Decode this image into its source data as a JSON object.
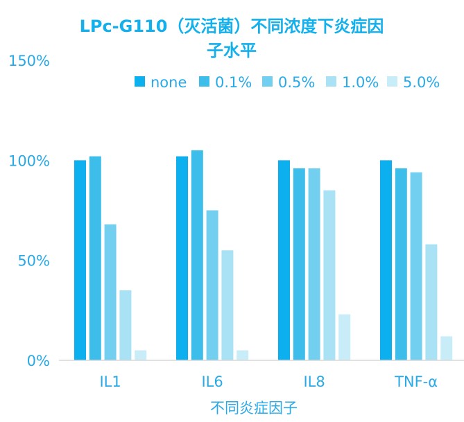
{
  "chart_data": {
    "type": "bar",
    "title": "LPc-G110（灭活菌）不同浓度下炎症因子水平",
    "title_lines": [
      "LPc-G110（灭活菌）不同浓度下炎症因子水平"
    ],
    "title_line1": "LPc-G110（灭活菌）不同浓度下炎症因",
    "title_line2": "子水平",
    "xlabel": "不同炎症因子",
    "ylabel": "",
    "categories": [
      "IL1",
      "IL6",
      "IL8",
      "TNF-α"
    ],
    "series": [
      {
        "name": "none",
        "values": [
          100,
          102,
          100,
          100
        ],
        "color": "#0db0ee"
      },
      {
        "name": "0.1%",
        "values": [
          102,
          105,
          96,
          96
        ],
        "color": "#3cbdea"
      },
      {
        "name": "0.5%",
        "values": [
          68,
          75,
          96,
          94
        ],
        "color": "#72cff0"
      },
      {
        "name": "1.0%",
        "values": [
          35,
          55,
          85,
          58
        ],
        "color": "#a9e2f5"
      },
      {
        "name": "5.0%",
        "values": [
          5,
          5,
          23,
          12
        ],
        "color": "#c9ecf9"
      }
    ],
    "ylim": [
      0,
      150
    ],
    "yticks": [
      "0%",
      "50%",
      "100%",
      "150%"
    ],
    "ytick_values": [
      0,
      50,
      100,
      150
    ],
    "legend_position": "top-right",
    "grid": false,
    "text_color": "#29a9e6"
  }
}
